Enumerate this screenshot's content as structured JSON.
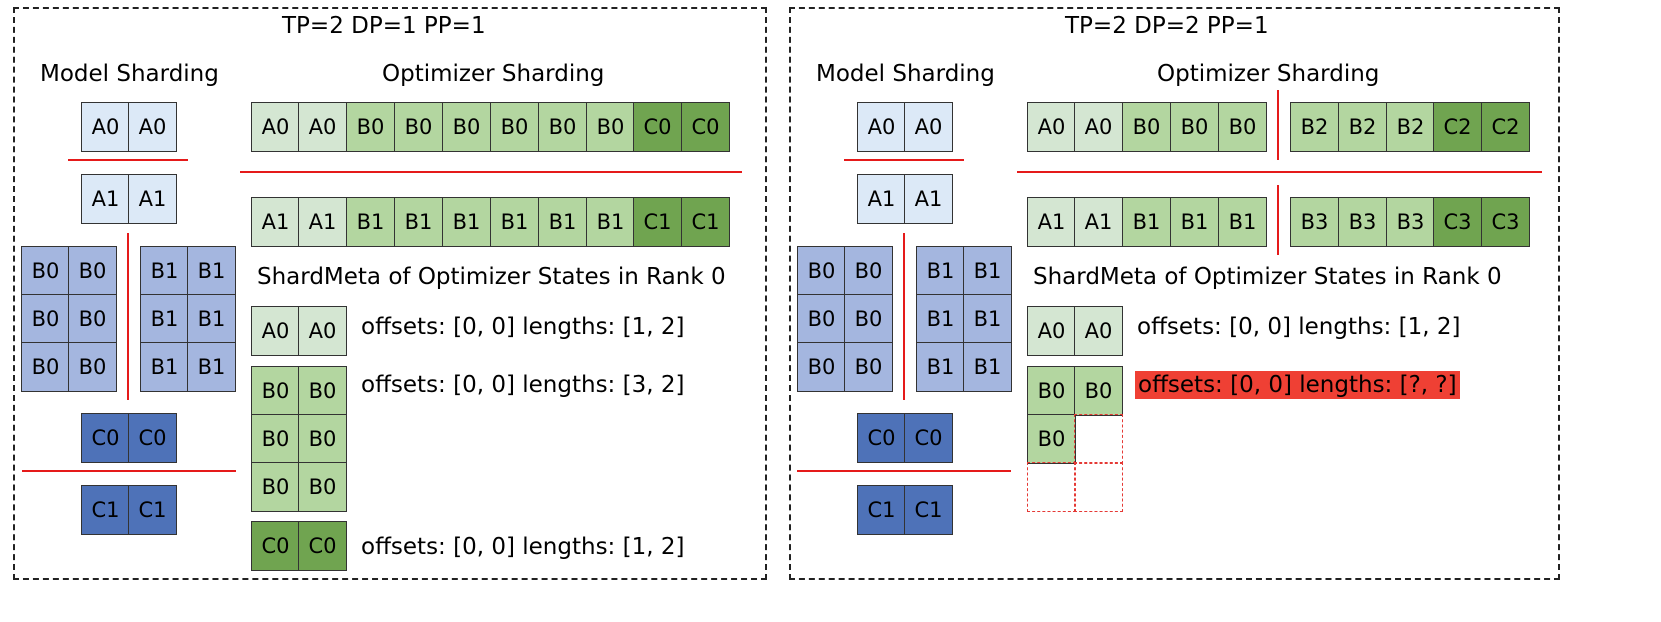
{
  "left": {
    "title": "TP=2 DP=1 PP=1",
    "model_title": "Model Sharding",
    "optimizer_title": "Optimizer Sharding",
    "model_rows": [
      [
        "A0",
        "A0"
      ],
      [
        "A1",
        "A1"
      ],
      [
        "B0",
        "B0"
      ],
      [
        "B0",
        "B0"
      ],
      [
        "B0",
        "B0"
      ],
      [
        "B1",
        "B1"
      ],
      [
        "B1",
        "B1"
      ],
      [
        "B1",
        "B1"
      ],
      [
        "C0",
        "C0"
      ],
      [
        "C1",
        "C1"
      ]
    ],
    "opt_row0": [
      "A0",
      "A0",
      "B0",
      "B0",
      "B0",
      "B0",
      "B0",
      "B0",
      "C0",
      "C0"
    ],
    "opt_row1": [
      "A1",
      "A1",
      "B1",
      "B1",
      "B1",
      "B1",
      "B1",
      "B1",
      "C1",
      "C1"
    ],
    "meta_title": "ShardMeta of Optimizer States in Rank 0",
    "meta_a": [
      "A0",
      "A0"
    ],
    "meta_b": [
      [
        "B0",
        "B0"
      ],
      [
        "B0",
        "B0"
      ],
      [
        "B0",
        "B0"
      ]
    ],
    "meta_c": [
      "C0",
      "C0"
    ],
    "meta_a_text": "offsets: [0, 0] lengths: [1, 2]",
    "meta_b_text": "offsets: [0, 0] lengths: [3, 2]",
    "meta_c_text": "offsets: [0, 0] lengths: [1, 2]"
  },
  "right": {
    "title": "TP=2 DP=2 PP=1",
    "model_title": "Model Sharding",
    "optimizer_title": "Optimizer Sharding",
    "model_rows": [
      [
        "A0",
        "A0"
      ],
      [
        "A1",
        "A1"
      ],
      [
        "B0",
        "B0"
      ],
      [
        "B0",
        "B0"
      ],
      [
        "B0",
        "B0"
      ],
      [
        "B1",
        "B1"
      ],
      [
        "B1",
        "B1"
      ],
      [
        "B1",
        "B1"
      ],
      [
        "C0",
        "C0"
      ],
      [
        "C1",
        "C1"
      ]
    ],
    "opt_row0_left": [
      "A0",
      "A0",
      "B0",
      "B0",
      "B0"
    ],
    "opt_row0_right": [
      "B2",
      "B2",
      "B2",
      "C2",
      "C2"
    ],
    "opt_row1_left": [
      "A1",
      "A1",
      "B1",
      "B1",
      "B1"
    ],
    "opt_row1_right": [
      "B3",
      "B3",
      "B3",
      "C3",
      "C3"
    ],
    "meta_title": "ShardMeta of Optimizer States in Rank 0",
    "meta_a": [
      "A0",
      "A0"
    ],
    "meta_b": [
      "B0",
      "B0",
      "B0"
    ],
    "meta_a_text": "offsets: [0, 0] lengths: [1, 2]",
    "meta_b_text": "offsets: [0, 0] lengths: [?, ?]"
  }
}
